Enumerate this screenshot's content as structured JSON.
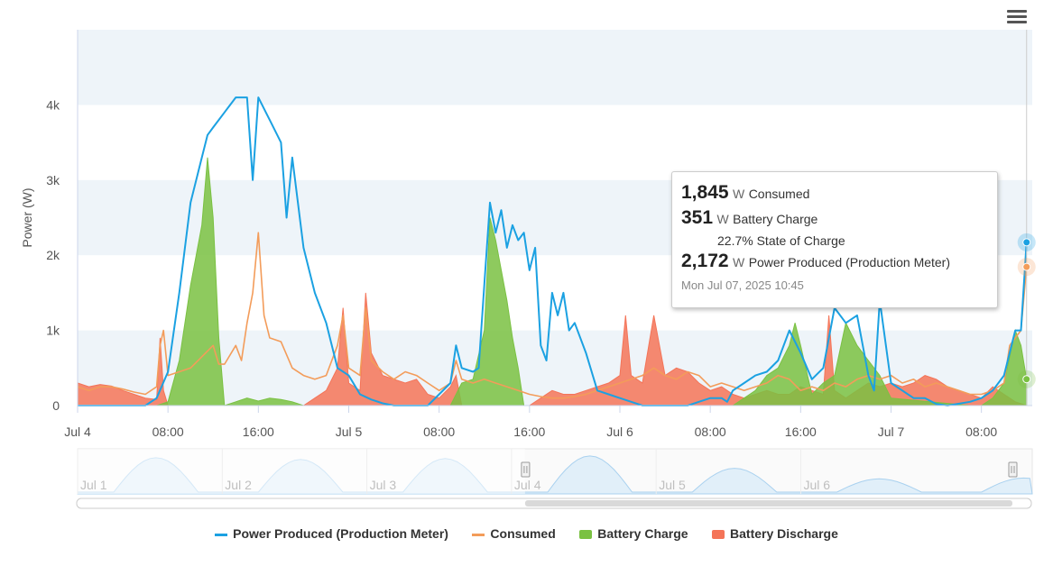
{
  "chart_data": {
    "type": "area",
    "ylabel": "Power (W)",
    "y_ticks": [
      "0",
      "1k",
      "2k",
      "3k",
      "4k"
    ],
    "ylim": [
      0,
      5000
    ],
    "x_ticks": [
      "Jul 4",
      "08:00",
      "16:00",
      "Jul 5",
      "08:00",
      "16:00",
      "Jul 6",
      "08:00",
      "16:00",
      "Jul 7",
      "08:00"
    ],
    "x_range_hours": [
      0,
      84.5
    ],
    "time_unit": "hours from Jul 4 00:00",
    "series": [
      {
        "name": "Power Produced (Production Meter)",
        "kind": "line",
        "color": "#1ba1e2",
        "points": [
          [
            0,
            0
          ],
          [
            6,
            0
          ],
          [
            7,
            100
          ],
          [
            8,
            450
          ],
          [
            9,
            1500
          ],
          [
            10,
            2700
          ],
          [
            11,
            3300
          ],
          [
            11.5,
            3600
          ],
          [
            12,
            3700
          ],
          [
            13,
            3900
          ],
          [
            14,
            4100
          ],
          [
            15,
            4100
          ],
          [
            15.5,
            3000
          ],
          [
            16,
            4100
          ],
          [
            17,
            3800
          ],
          [
            18,
            3500
          ],
          [
            18.5,
            2500
          ],
          [
            19,
            3300
          ],
          [
            20,
            2100
          ],
          [
            21,
            1500
          ],
          [
            22,
            1100
          ],
          [
            23,
            500
          ],
          [
            24,
            400
          ],
          [
            25,
            150
          ],
          [
            26,
            80
          ],
          [
            27,
            30
          ],
          [
            28,
            0
          ],
          [
            30,
            0
          ],
          [
            31,
            0
          ],
          [
            32,
            150
          ],
          [
            33,
            300
          ],
          [
            33.5,
            800
          ],
          [
            34,
            500
          ],
          [
            35,
            450
          ],
          [
            35.5,
            500
          ],
          [
            36,
            1600
          ],
          [
            36.5,
            2700
          ],
          [
            37,
            2300
          ],
          [
            37.5,
            2600
          ],
          [
            38,
            2100
          ],
          [
            38.5,
            2400
          ],
          [
            39,
            2200
          ],
          [
            39.5,
            2300
          ],
          [
            40,
            1800
          ],
          [
            40.5,
            2100
          ],
          [
            41,
            800
          ],
          [
            41.5,
            600
          ],
          [
            42,
            1500
          ],
          [
            42.5,
            1200
          ],
          [
            43,
            1500
          ],
          [
            43.5,
            1000
          ],
          [
            44,
            1100
          ],
          [
            45,
            700
          ],
          [
            46,
            200
          ],
          [
            47,
            150
          ],
          [
            48,
            100
          ],
          [
            49,
            50
          ],
          [
            50,
            0
          ],
          [
            54,
            0
          ],
          [
            55,
            50
          ],
          [
            56,
            100
          ],
          [
            57,
            100
          ],
          [
            57.5,
            50
          ],
          [
            58,
            200
          ],
          [
            59,
            300
          ],
          [
            60,
            400
          ],
          [
            61,
            450
          ],
          [
            62,
            600
          ],
          [
            63,
            1000
          ],
          [
            64,
            700
          ],
          [
            65,
            350
          ],
          [
            66,
            500
          ],
          [
            67,
            1300
          ],
          [
            68,
            1100
          ],
          [
            69,
            1200
          ],
          [
            70,
            400
          ],
          [
            70.5,
            200
          ],
          [
            71,
            1400
          ],
          [
            72,
            300
          ],
          [
            73,
            200
          ],
          [
            74,
            100
          ],
          [
            75,
            100
          ],
          [
            76,
            20
          ],
          [
            77,
            0
          ],
          [
            79,
            50
          ],
          [
            80,
            100
          ],
          [
            81,
            200
          ],
          [
            82,
            400
          ],
          [
            83,
            1000
          ],
          [
            83.5,
            1000
          ],
          [
            84,
            2172
          ]
        ]
      },
      {
        "name": "Consumed",
        "kind": "line",
        "color": "#f39c5a",
        "points": [
          [
            0,
            250
          ],
          [
            1,
            200
          ],
          [
            2,
            250
          ],
          [
            3,
            250
          ],
          [
            4,
            220
          ],
          [
            5,
            180
          ],
          [
            6,
            150
          ],
          [
            7,
            250
          ],
          [
            7.3,
            800
          ],
          [
            7.6,
            1000
          ],
          [
            8,
            400
          ],
          [
            9,
            450
          ],
          [
            10,
            500
          ],
          [
            11,
            650
          ],
          [
            12,
            800
          ],
          [
            12.5,
            550
          ],
          [
            13,
            550
          ],
          [
            14,
            800
          ],
          [
            14.5,
            600
          ],
          [
            15,
            1100
          ],
          [
            15.5,
            1500
          ],
          [
            16,
            2300
          ],
          [
            16.5,
            1200
          ],
          [
            17,
            900
          ],
          [
            18,
            850
          ],
          [
            19,
            500
          ],
          [
            20,
            400
          ],
          [
            21,
            350
          ],
          [
            22,
            400
          ],
          [
            23,
            800
          ],
          [
            23.5,
            1200
          ],
          [
            24,
            500
          ],
          [
            25,
            400
          ],
          [
            25.5,
            1300
          ],
          [
            26,
            600
          ],
          [
            27,
            450
          ],
          [
            28,
            350
          ],
          [
            29,
            450
          ],
          [
            30,
            400
          ],
          [
            31,
            300
          ],
          [
            32,
            200
          ],
          [
            33,
            300
          ],
          [
            33.5,
            600
          ],
          [
            34,
            350
          ],
          [
            35,
            300
          ],
          [
            36,
            350
          ],
          [
            37,
            300
          ],
          [
            38,
            250
          ],
          [
            39,
            200
          ],
          [
            40,
            150
          ],
          [
            41,
            120
          ],
          [
            42,
            100
          ],
          [
            43,
            100
          ],
          [
            44,
            120
          ],
          [
            45,
            150
          ],
          [
            46,
            200
          ],
          [
            47,
            250
          ],
          [
            48,
            300
          ],
          [
            49,
            350
          ],
          [
            50,
            400
          ],
          [
            51,
            500
          ],
          [
            52,
            400
          ],
          [
            53,
            350
          ],
          [
            54,
            450
          ],
          [
            55,
            400
          ],
          [
            56,
            250
          ],
          [
            57,
            300
          ],
          [
            58,
            250
          ],
          [
            59,
            200
          ],
          [
            60,
            250
          ],
          [
            61,
            300
          ],
          [
            62,
            400
          ],
          [
            63,
            350
          ],
          [
            64,
            200
          ],
          [
            65,
            250
          ],
          [
            66,
            200
          ],
          [
            67,
            300
          ],
          [
            68,
            250
          ],
          [
            69,
            350
          ],
          [
            70,
            400
          ],
          [
            71,
            350
          ],
          [
            72,
            400
          ],
          [
            73,
            300
          ],
          [
            74,
            350
          ],
          [
            75,
            250
          ],
          [
            76,
            300
          ],
          [
            77,
            250
          ],
          [
            78,
            200
          ],
          [
            79,
            150
          ],
          [
            80,
            150
          ],
          [
            81,
            200
          ],
          [
            82,
            300
          ],
          [
            82.5,
            800
          ],
          [
            83,
            900
          ],
          [
            83.5,
            1000
          ],
          [
            84,
            1845
          ]
        ]
      },
      {
        "name": "Battery Charge",
        "kind": "area",
        "color": "#7ac142",
        "points": [
          [
            0,
            0
          ],
          [
            7,
            0
          ],
          [
            8,
            50
          ],
          [
            9,
            600
          ],
          [
            10,
            1600
          ],
          [
            11,
            2400
          ],
          [
            11.5,
            3300
          ],
          [
            12,
            2500
          ],
          [
            12.5,
            900
          ],
          [
            13,
            0
          ],
          [
            14,
            50
          ],
          [
            15,
            100
          ],
          [
            16,
            60
          ],
          [
            17,
            100
          ],
          [
            18,
            80
          ],
          [
            19,
            50
          ],
          [
            20,
            0
          ],
          [
            33,
            0
          ],
          [
            34,
            300
          ],
          [
            35,
            350
          ],
          [
            36,
            1000
          ],
          [
            36.5,
            2500
          ],
          [
            37,
            2200
          ],
          [
            38,
            1400
          ],
          [
            38.5,
            900
          ],
          [
            39,
            500
          ],
          [
            39.5,
            0
          ],
          [
            52,
            0
          ],
          [
            58,
            0
          ],
          [
            59,
            100
          ],
          [
            60,
            200
          ],
          [
            61,
            400
          ],
          [
            62,
            500
          ],
          [
            63,
            800
          ],
          [
            63.5,
            1100
          ],
          [
            64,
            800
          ],
          [
            65,
            150
          ],
          [
            66,
            300
          ],
          [
            67,
            400
          ],
          [
            68,
            1100
          ],
          [
            69,
            800
          ],
          [
            70,
            600
          ],
          [
            71,
            400
          ],
          [
            72,
            100
          ],
          [
            79,
            0
          ],
          [
            80,
            0
          ],
          [
            81,
            100
          ],
          [
            82,
            300
          ],
          [
            83,
            1000
          ],
          [
            83.5,
            800
          ],
          [
            84,
            351
          ]
        ]
      },
      {
        "name": "Battery Discharge",
        "kind": "area",
        "color": "#f47458",
        "points": [
          [
            0,
            300
          ],
          [
            1,
            250
          ],
          [
            2,
            280
          ],
          [
            3,
            260
          ],
          [
            4,
            200
          ],
          [
            5,
            150
          ],
          [
            6,
            100
          ],
          [
            7,
            80
          ],
          [
            7.3,
            900
          ],
          [
            7.6,
            200
          ],
          [
            8,
            0
          ],
          [
            20,
            0
          ],
          [
            21,
            100
          ],
          [
            22,
            200
          ],
          [
            23,
            500
          ],
          [
            23.5,
            1300
          ],
          [
            24,
            300
          ],
          [
            25,
            200
          ],
          [
            25.5,
            1500
          ],
          [
            26,
            700
          ],
          [
            27,
            400
          ],
          [
            28,
            350
          ],
          [
            29,
            300
          ],
          [
            30,
            350
          ],
          [
            31,
            150
          ],
          [
            32,
            100
          ],
          [
            33,
            250
          ],
          [
            33.5,
            400
          ],
          [
            34,
            0
          ],
          [
            40,
            0
          ],
          [
            41,
            100
          ],
          [
            42,
            200
          ],
          [
            43,
            150
          ],
          [
            44,
            150
          ],
          [
            45,
            200
          ],
          [
            46,
            250
          ],
          [
            47,
            300
          ],
          [
            48,
            400
          ],
          [
            48.5,
            1200
          ],
          [
            49,
            400
          ],
          [
            50,
            300
          ],
          [
            51,
            1200
          ],
          [
            52,
            400
          ],
          [
            53,
            500
          ],
          [
            54,
            450
          ],
          [
            55,
            300
          ],
          [
            56,
            200
          ],
          [
            57,
            250
          ],
          [
            58,
            150
          ],
          [
            59,
            100
          ],
          [
            60,
            150
          ],
          [
            61,
            200
          ],
          [
            62,
            150
          ],
          [
            63,
            150
          ],
          [
            64,
            250
          ],
          [
            65,
            200
          ],
          [
            66,
            150
          ],
          [
            66.5,
            1200
          ],
          [
            67,
            200
          ],
          [
            68,
            100
          ],
          [
            69,
            200
          ],
          [
            70,
            300
          ],
          [
            71,
            250
          ],
          [
            72,
            300
          ],
          [
            73,
            250
          ],
          [
            74,
            300
          ],
          [
            75,
            400
          ],
          [
            76,
            350
          ],
          [
            77,
            250
          ],
          [
            78,
            200
          ],
          [
            79,
            150
          ],
          [
            80,
            100
          ],
          [
            81,
            250
          ],
          [
            82,
            150
          ],
          [
            83,
            50
          ],
          [
            84,
            0
          ]
        ]
      }
    ],
    "navigator": {
      "labels": [
        "Jul 1",
        "Jul 2",
        "Jul 3",
        "Jul 4",
        "Jul 5",
        "Jul 6"
      ],
      "peaks_kw": [
        3.9,
        3.7,
        3.8,
        4.1,
        2.7,
        1.5,
        1.6
      ],
      "selected_range": [
        "Jul 4",
        "Jul 7 10:45"
      ]
    },
    "tooltip": {
      "consumed_value": "1,845",
      "consumed_unit": "W",
      "consumed_label": "Consumed",
      "battery_value": "351",
      "battery_unit": "W",
      "battery_label": "Battery Charge",
      "soc_value": "22.7%",
      "soc_label": "State of Charge",
      "produced_value": "2,172",
      "produced_unit": "W",
      "produced_label": "Power Produced (Production Meter)",
      "date": "Mon Jul 07, 2025 10:45"
    },
    "grid": "alternate horizontal bands",
    "legend_placement": "bottom-center"
  },
  "menu_icon": "hamburger-menu-icon"
}
